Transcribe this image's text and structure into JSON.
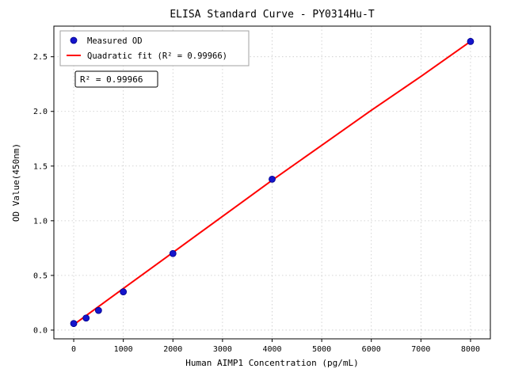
{
  "chart_data": {
    "type": "scatter",
    "title": "ELISA Standard Curve - PY0314Hu-T",
    "xlabel": "Human AIMP1 Concentration (pg/mL)",
    "ylabel": "OD Value(450nm)",
    "xlim": [
      -400,
      8400
    ],
    "ylim": [
      -0.08,
      2.78
    ],
    "grid": true,
    "legend_position": "upper left",
    "xticks": [
      0,
      1000,
      2000,
      3000,
      4000,
      5000,
      6000,
      7000,
      8000
    ],
    "xtick_labels": [
      "0",
      "1000",
      "2000",
      "3000",
      "4000",
      "5000",
      "6000",
      "7000",
      "8000"
    ],
    "yticks": [
      0.0,
      0.5,
      1.0,
      1.5,
      2.0,
      2.5
    ],
    "ytick_labels": [
      "0.0",
      "0.5",
      "1.0",
      "1.5",
      "2.0",
      "2.5"
    ],
    "series": [
      {
        "name": "Measured OD",
        "kind": "scatter",
        "color": "#1515cc",
        "x": [
          0,
          250,
          500,
          1000,
          2000,
          4000,
          8000
        ],
        "y": [
          0.06,
          0.11,
          0.18,
          0.35,
          0.7,
          1.38,
          2.64
        ]
      },
      {
        "name": "Quadratic fit (R² = 0.99966)",
        "kind": "line",
        "color": "#ff0000",
        "x": [
          0,
          1000,
          2000,
          3000,
          4000,
          5000,
          6000,
          7000,
          8000
        ],
        "y": [
          0.05,
          0.38,
          0.71,
          1.04,
          1.37,
          1.69,
          2.01,
          2.32,
          2.64
        ]
      }
    ],
    "annotation": "R² = 0.99966",
    "colors": {
      "grid": "#c8c8c8",
      "axes": "#000000",
      "legend_border": "#a0a0a0",
      "annotation_border": "#000000",
      "background": "#ffffff"
    }
  }
}
